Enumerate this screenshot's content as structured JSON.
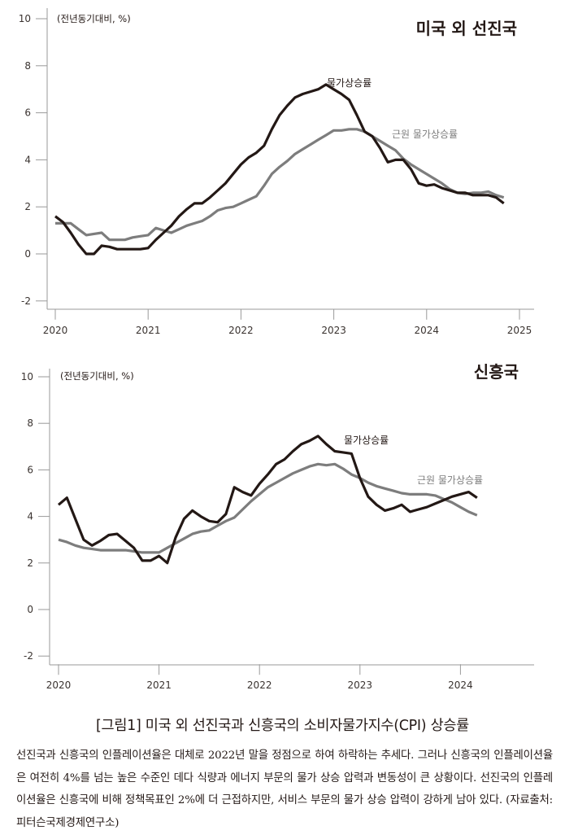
{
  "chart_data": [
    {
      "type": "line",
      "title": "미국 외 선진국",
      "unit_label": "(전년동기대비, %)",
      "xlabel": "",
      "ylabel": "",
      "ylim": [
        -2,
        10
      ],
      "yticks": [
        "-2",
        "0",
        "2",
        "4",
        "6",
        "8",
        "10"
      ],
      "xlim": [
        2020,
        2025
      ],
      "xticks": [
        "2020",
        "2021",
        "2022",
        "2023",
        "2024",
        "2025"
      ],
      "grid": false,
      "x_start": 2020.0,
      "x_step": 0.0833,
      "series": [
        {
          "name": "물가상승률",
          "color": "#231815",
          "values": [
            1.6,
            1.35,
            0.9,
            0.4,
            0.0,
            0.0,
            0.35,
            0.3,
            0.2,
            0.2,
            0.2,
            0.2,
            0.25,
            0.6,
            0.9,
            1.2,
            1.6,
            1.9,
            2.15,
            2.15,
            2.4,
            2.7,
            3.0,
            3.4,
            3.8,
            4.1,
            4.3,
            4.6,
            5.3,
            5.9,
            6.3,
            6.65,
            6.8,
            6.9,
            7.0,
            7.2,
            7.0,
            6.8,
            6.55,
            5.9,
            5.2,
            5.0,
            4.5,
            3.9,
            4.0,
            4.0,
            3.6,
            3.0,
            2.9,
            2.95,
            2.8,
            2.7,
            2.6,
            2.6,
            2.5,
            2.5,
            2.5,
            2.4,
            2.15
          ]
        },
        {
          "name": "근원 물가상승률",
          "color": "#7d7d7d",
          "values": [
            1.3,
            1.3,
            1.3,
            1.05,
            0.8,
            0.85,
            0.9,
            0.6,
            0.6,
            0.6,
            0.7,
            0.75,
            0.8,
            1.1,
            1.0,
            0.9,
            1.05,
            1.2,
            1.3,
            1.4,
            1.6,
            1.85,
            1.95,
            2.0,
            2.15,
            2.3,
            2.45,
            2.9,
            3.4,
            3.7,
            3.95,
            4.25,
            4.45,
            4.65,
            4.85,
            5.05,
            5.25,
            5.25,
            5.3,
            5.3,
            5.2,
            5.0,
            4.8,
            4.6,
            4.4,
            4.05,
            3.8,
            3.6,
            3.4,
            3.2,
            3.0,
            2.75,
            2.6,
            2.55,
            2.6,
            2.6,
            2.65,
            2.5,
            2.4
          ]
        }
      ]
    },
    {
      "type": "line",
      "title": "신흥국",
      "unit_label": "(전년동기대비, %)",
      "xlabel": "",
      "ylabel": "",
      "ylim": [
        -2,
        10
      ],
      "yticks": [
        "-2",
        "0",
        "2",
        "4",
        "6",
        "8",
        "10"
      ],
      "xlim": [
        2020,
        2024.75
      ],
      "xticks": [
        "2020",
        "2021",
        "2022",
        "2023",
        "2024"
      ],
      "grid": false,
      "x_start": 2020.0,
      "x_step": 0.0833,
      "series": [
        {
          "name": "물가상승률",
          "color": "#231815",
          "values": [
            4.5,
            4.8,
            3.9,
            3.0,
            2.75,
            2.95,
            3.2,
            3.25,
            2.95,
            2.65,
            2.1,
            2.1,
            2.3,
            2.0,
            3.1,
            3.9,
            4.25,
            4.0,
            3.8,
            3.75,
            4.1,
            5.25,
            5.05,
            4.9,
            5.4,
            5.8,
            6.25,
            6.45,
            6.8,
            7.1,
            7.25,
            7.45,
            7.1,
            6.8,
            6.75,
            6.7,
            5.65,
            4.85,
            4.5,
            4.25,
            4.35,
            4.5,
            4.2,
            4.3,
            4.4,
            4.55,
            4.7,
            4.85,
            4.95,
            5.05,
            4.8
          ]
        },
        {
          "name": "근원 물가상승률",
          "color": "#7d7d7d",
          "values": [
            3.0,
            2.9,
            2.75,
            2.65,
            2.6,
            2.55,
            2.55,
            2.55,
            2.55,
            2.5,
            2.45,
            2.45,
            2.45,
            2.65,
            2.85,
            3.05,
            3.25,
            3.35,
            3.4,
            3.6,
            3.8,
            3.95,
            4.3,
            4.65,
            4.95,
            5.25,
            5.45,
            5.65,
            5.85,
            6.0,
            6.15,
            6.25,
            6.2,
            6.25,
            6.05,
            5.8,
            5.65,
            5.45,
            5.3,
            5.2,
            5.1,
            5.0,
            4.95,
            4.95,
            4.95,
            4.9,
            4.75,
            4.6,
            4.4,
            4.2,
            4.05
          ]
        }
      ]
    }
  ],
  "caption": "[그림1] 미국 외 선진국과 신흥국의 소비자물가지수(CPI) 상승률",
  "body_text": "선진국과 신흥국의 인플레이션율은 대체로 2022년 말을 정점으로 하여 하락하는 추세다. 그러나 신흥국의 인플레이션율은 여전히 4%를 넘는 높은 수준인 데다 식량과 에너지 부문의 물가 상승 압력과 변동성이 큰 상황이다. 선진국의 인플레이션율은 신흥국에 비해 정책목표인 2%에 더 근접하지만, 서비스 부문의 물가 상승 압력이 강하게 남아 있다. (자료출처: 피터슨국제경제연구소)"
}
